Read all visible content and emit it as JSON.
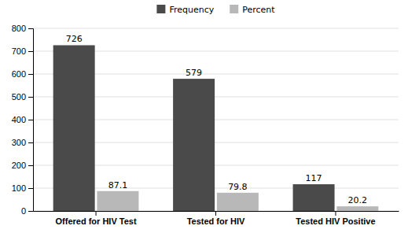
{
  "chart_data": {
    "type": "bar",
    "categories": [
      "Offered for HIV Test",
      "Tested for HIV",
      "Tested HIV Positive"
    ],
    "series": [
      {
        "name": "Frequency",
        "color": "#4a4a4a",
        "values": [
          726,
          579,
          117
        ]
      },
      {
        "name": "Percent",
        "color": "#b8b8b8",
        "values": [
          87.1,
          79.8,
          20.2
        ]
      }
    ],
    "ylim": [
      0,
      800
    ],
    "yticks": [
      0,
      100,
      200,
      300,
      400,
      500,
      600,
      700,
      800
    ],
    "grid": true,
    "legend": "top",
    "data_labels": true
  }
}
